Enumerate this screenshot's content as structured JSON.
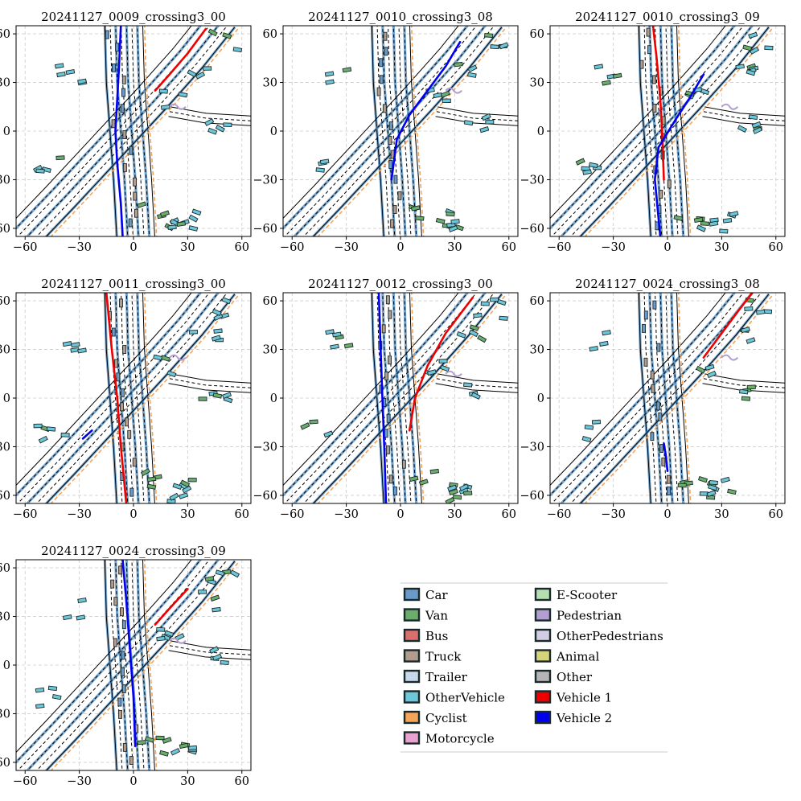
{
  "chart_data": [
    {
      "type": "map-scenario",
      "title": "20241127_0009_crossing3_00",
      "xlim": [
        -65,
        65
      ],
      "ylim": [
        -65,
        65
      ],
      "xticks": [
        -60,
        -30,
        0,
        30,
        60
      ],
      "yticks": [
        -60,
        -30,
        0,
        30,
        60
      ],
      "grid": true,
      "tracks": [
        {
          "series": "Vehicle 2",
          "x": [
            -7,
            -8,
            -9,
            -10,
            -9,
            -7,
            -6
          ],
          "y": [
            65,
            40,
            20,
            0,
            -20,
            -45,
            -65
          ]
        },
        {
          "series": "Vehicle 1",
          "x": [
            12,
            20,
            30,
            40
          ],
          "y": [
            25,
            35,
            48,
            63
          ]
        }
      ]
    },
    {
      "type": "map-scenario",
      "title": "20241127_0010_crossing3_08",
      "xlim": [
        -65,
        65
      ],
      "ylim": [
        -65,
        65
      ],
      "xticks": [
        -60,
        -30,
        0,
        30,
        60
      ],
      "yticks": [
        -60,
        -30,
        0,
        30,
        60
      ],
      "grid": true,
      "tracks": [
        {
          "series": "Vehicle 2",
          "x": [
            -5,
            -2,
            5,
            15,
            25,
            33
          ],
          "y": [
            -30,
            -5,
            10,
            25,
            40,
            55
          ]
        }
      ]
    },
    {
      "type": "map-scenario",
      "title": "20241127_0010_crossing3_09",
      "xlim": [
        -65,
        65
      ],
      "ylim": [
        -65,
        65
      ],
      "xticks": [
        -60,
        -30,
        0,
        30,
        60
      ],
      "yticks": [
        -60,
        -30,
        0,
        30,
        60
      ],
      "grid": true,
      "tracks": [
        {
          "series": "Vehicle 1",
          "x": [
            -8,
            -6,
            -4,
            -3,
            -2
          ],
          "y": [
            65,
            45,
            20,
            0,
            -30
          ]
        },
        {
          "series": "Vehicle 2",
          "x": [
            -4,
            -7,
            -5,
            5,
            12,
            20
          ],
          "y": [
            -65,
            -30,
            -10,
            8,
            20,
            35
          ]
        }
      ]
    },
    {
      "type": "map-scenario",
      "title": "20241127_0011_crossing3_00",
      "xlim": [
        -65,
        65
      ],
      "ylim": [
        -65,
        65
      ],
      "xticks": [
        -60,
        -30,
        0,
        30,
        60
      ],
      "yticks": [
        -60,
        -30,
        0,
        30,
        60
      ],
      "grid": true,
      "tracks": [
        {
          "series": "Vehicle 1",
          "x": [
            -15,
            -12,
            -9,
            -7,
            -4
          ],
          "y": [
            65,
            30,
            0,
            -30,
            -65
          ]
        },
        {
          "series": "Vehicle 2",
          "x": [
            -28,
            -23
          ],
          "y": [
            -25,
            -20
          ]
        }
      ]
    },
    {
      "type": "map-scenario",
      "title": "20241127_0012_crossing3_00",
      "xlim": [
        -65,
        65
      ],
      "ylim": [
        -65,
        65
      ],
      "xticks": [
        -60,
        -30,
        0,
        30,
        60
      ],
      "yticks": [
        -60,
        -30,
        0,
        30,
        60
      ],
      "grid": true,
      "tracks": [
        {
          "series": "Vehicle 2",
          "x": [
            -12,
            -11,
            -10,
            -9,
            -8
          ],
          "y": [
            65,
            30,
            0,
            -30,
            -65
          ]
        },
        {
          "series": "Vehicle 1",
          "x": [
            5,
            8,
            15,
            25,
            40
          ],
          "y": [
            -20,
            0,
            20,
            40,
            62
          ]
        }
      ]
    },
    {
      "type": "map-scenario",
      "title": "20241127_0024_crossing3_08",
      "xlim": [
        -65,
        65
      ],
      "ylim": [
        -65,
        65
      ],
      "xticks": [
        -60,
        -30,
        0,
        30,
        60
      ],
      "yticks": [
        -60,
        -30,
        0,
        30,
        60
      ],
      "grid": true,
      "tracks": [
        {
          "series": "Vehicle 1",
          "x": [
            20,
            30,
            40,
            47
          ],
          "y": [
            25,
            40,
            55,
            65
          ]
        },
        {
          "series": "Vehicle 2",
          "x": [
            -2,
            -1,
            0
          ],
          "y": [
            -28,
            -35,
            -45
          ]
        }
      ]
    },
    {
      "type": "map-scenario",
      "title": "20241127_0024_crossing3_09",
      "xlim": [
        -65,
        65
      ],
      "ylim": [
        -65,
        65
      ],
      "xticks": [
        -60,
        -30,
        0,
        30,
        60
      ],
      "yticks": [
        -60,
        -30,
        0,
        30,
        60
      ],
      "grid": true,
      "tracks": [
        {
          "series": "Vehicle 2",
          "x": [
            -6,
            -4,
            -2,
            0,
            1
          ],
          "y": [
            65,
            40,
            10,
            -20,
            -50
          ]
        },
        {
          "series": "Vehicle 1",
          "x": [
            12,
            20,
            30
          ],
          "y": [
            25,
            35,
            47
          ]
        }
      ]
    }
  ],
  "legend": {
    "items": [
      {
        "label": "Car",
        "color": "#6b9ac8"
      },
      {
        "label": "Van",
        "color": "#6cad6c"
      },
      {
        "label": "Bus",
        "color": "#d9706b"
      },
      {
        "label": "Truck",
        "color": "#b39b8e"
      },
      {
        "label": "Trailer",
        "color": "#c8d8ea"
      },
      {
        "label": "OtherVehicle",
        "color": "#6dc6d9"
      },
      {
        "label": "Cyclist",
        "color": "#f5a55a"
      },
      {
        "label": "Motorcycle",
        "color": "#e6a3d0"
      },
      {
        "label": "E-Scooter",
        "color": "#b5dfb0"
      },
      {
        "label": "Pedestrian",
        "color": "#b39ed1"
      },
      {
        "label": "OtherPedestrians",
        "color": "#d3cde3"
      },
      {
        "label": "Animal",
        "color": "#d3d47c"
      },
      {
        "label": "Other",
        "color": "#b5b5b5"
      },
      {
        "label": "Vehicle 1",
        "color": "#ee0000"
      },
      {
        "label": "Vehicle 2",
        "color": "#0000ee"
      }
    ]
  }
}
